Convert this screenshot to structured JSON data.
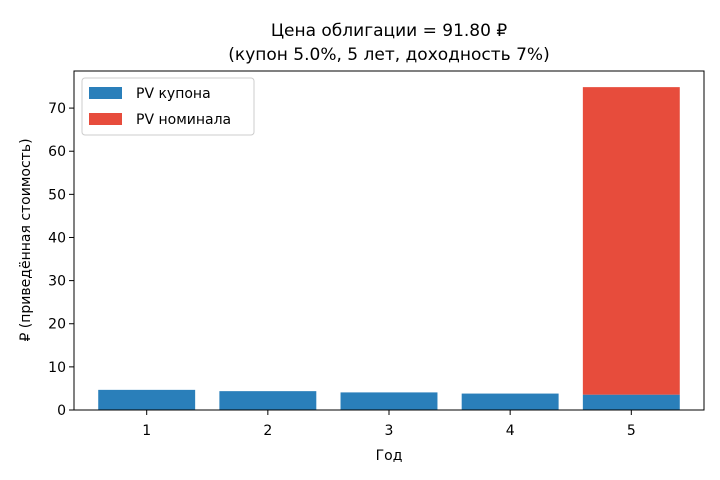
{
  "chart_data": {
    "type": "bar",
    "stacked": true,
    "title": "Цена облигации = 91.80 ₽",
    "subtitle": "(купон 5.0%, 5 лет, доходность 7%)",
    "xlabel": "Год",
    "ylabel": "₽ (приведённая стоимость)",
    "categories": [
      "1",
      "2",
      "3",
      "4",
      "5"
    ],
    "series": [
      {
        "name": "PV купона",
        "color": "#2a7fba",
        "values": [
          4.67,
          4.37,
          4.08,
          3.81,
          3.56
        ]
      },
      {
        "name": "PV номинала",
        "color": "#e74c3c",
        "values": [
          0,
          0,
          0,
          0,
          71.3
        ]
      }
    ],
    "yticks": [
      0,
      10,
      20,
      30,
      40,
      50,
      60,
      70
    ],
    "ylim": [
      0,
      78.6
    ],
    "grid": false,
    "legend_position": "top-left"
  }
}
